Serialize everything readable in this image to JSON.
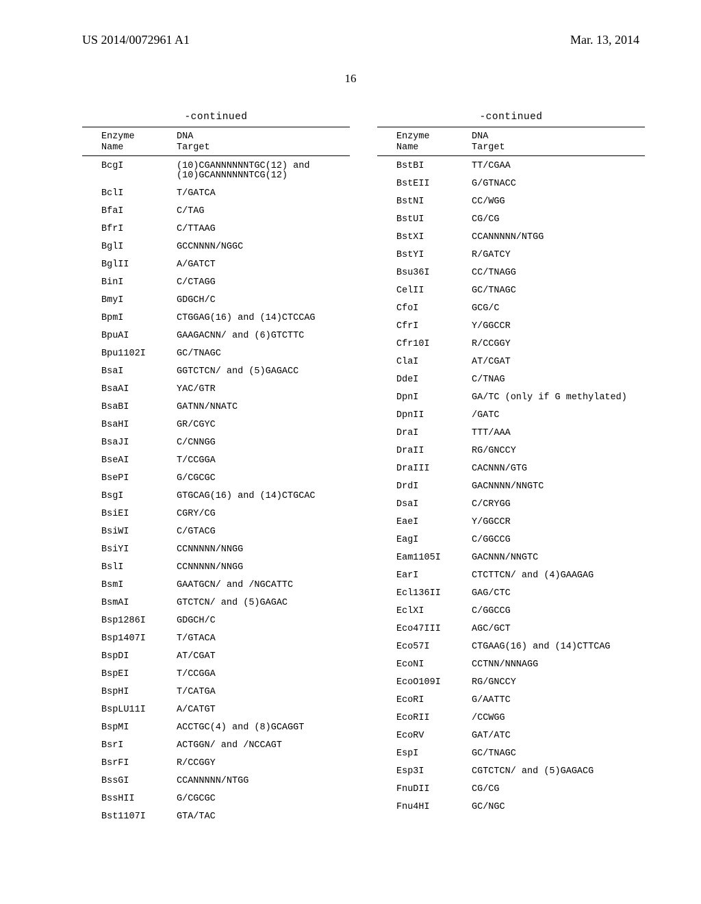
{
  "header": {
    "pub_number": "US 2014/0072961 A1",
    "pub_date": "Mar. 13, 2014"
  },
  "page_number": "16",
  "continued_label": "-continued",
  "column_headers": {
    "enzyme_line1": "Enzyme",
    "enzyme_line2": "Name",
    "dna_line1": "DNA",
    "dna_line2": "Target"
  },
  "left_rows": [
    {
      "name": "BcgI",
      "target": "(10)CGANNNNNNTGC(12) and\n(10)GCANNNNNNTCG(12)"
    },
    {
      "name": "BclI",
      "target": "T/GATCA"
    },
    {
      "name": "BfaI",
      "target": "C/TAG"
    },
    {
      "name": "BfrI",
      "target": "C/TTAAG"
    },
    {
      "name": "BglI",
      "target": "GCCNNNN/NGGC"
    },
    {
      "name": "BglII",
      "target": "A/GATCT"
    },
    {
      "name": "BinI",
      "target": "C/CTAGG"
    },
    {
      "name": "BmyI",
      "target": "GDGCH/C"
    },
    {
      "name": "BpmI",
      "target": "CTGGAG(16) and (14)CTCCAG"
    },
    {
      "name": "BpuAI",
      "target": "GAAGACNN/ and (6)GTCTTC"
    },
    {
      "name": "Bpu1102I",
      "target": "GC/TNAGC"
    },
    {
      "name": "BsaI",
      "target": "GGTCTCN/ and (5)GAGACC"
    },
    {
      "name": "BsaAI",
      "target": "YAC/GTR"
    },
    {
      "name": "BsaBI",
      "target": "GATNN/NNATC"
    },
    {
      "name": "BsaHI",
      "target": "GR/CGYC"
    },
    {
      "name": "BsaJI",
      "target": "C/CNNGG"
    },
    {
      "name": "BseAI",
      "target": "T/CCGGA"
    },
    {
      "name": "BsePI",
      "target": "G/CGCGC"
    },
    {
      "name": "BsgI",
      "target": "GTGCAG(16) and (14)CTGCAC"
    },
    {
      "name": "BsiEI",
      "target": "CGRY/CG"
    },
    {
      "name": "BsiWI",
      "target": "C/GTACG"
    },
    {
      "name": "BsiYI",
      "target": "CCNNNNN/NNGG"
    },
    {
      "name": "BslI",
      "target": "CCNNNNN/NNGG"
    },
    {
      "name": "BsmI",
      "target": "GAATGCN/ and /NGCATTC"
    },
    {
      "name": "BsmAI",
      "target": "GTCTCN/ and (5)GAGAC"
    },
    {
      "name": "Bsp1286I",
      "target": "GDGCH/C"
    },
    {
      "name": "Bsp1407I",
      "target": "T/GTACA"
    },
    {
      "name": "BspDI",
      "target": "AT/CGAT"
    },
    {
      "name": "BspEI",
      "target": "T/CCGGA"
    },
    {
      "name": "BspHI",
      "target": "T/CATGA"
    },
    {
      "name": "BspLU11I",
      "target": "A/CATGT"
    },
    {
      "name": "BspMI",
      "target": "ACCTGC(4) and (8)GCAGGT"
    },
    {
      "name": "BsrI",
      "target": "ACTGGN/ and /NCCAGT"
    },
    {
      "name": "BsrFI",
      "target": "R/CCGGY"
    },
    {
      "name": "BssGI",
      "target": "CCANNNNN/NTGG"
    },
    {
      "name": "BssHII",
      "target": "G/CGCGC"
    },
    {
      "name": "Bst1107I",
      "target": "GTA/TAC"
    }
  ],
  "right_rows": [
    {
      "name": "BstBI",
      "target": "TT/CGAA"
    },
    {
      "name": "BstEII",
      "target": "G/GTNACC"
    },
    {
      "name": "BstNI",
      "target": "CC/WGG"
    },
    {
      "name": "BstUI",
      "target": "CG/CG"
    },
    {
      "name": "BstXI",
      "target": "CCANNNNN/NTGG"
    },
    {
      "name": "BstYI",
      "target": "R/GATCY"
    },
    {
      "name": "Bsu36I",
      "target": "CC/TNAGG"
    },
    {
      "name": "CelII",
      "target": "GC/TNAGC"
    },
    {
      "name": "CfoI",
      "target": "GCG/C"
    },
    {
      "name": "CfrI",
      "target": "Y/GGCCR"
    },
    {
      "name": "Cfr10I",
      "target": "R/CCGGY"
    },
    {
      "name": "ClaI",
      "target": "AT/CGAT"
    },
    {
      "name": "DdeI",
      "target": "C/TNAG"
    },
    {
      "name": "DpnI",
      "target": "GA/TC (only if G methylated)"
    },
    {
      "name": "DpnII",
      "target": "/GATC"
    },
    {
      "name": "DraI",
      "target": "TTT/AAA"
    },
    {
      "name": "DraII",
      "target": "RG/GNCCY"
    },
    {
      "name": "DraIII",
      "target": "CACNNN/GTG"
    },
    {
      "name": "DrdI",
      "target": "GACNNNN/NNGTC"
    },
    {
      "name": "DsaI",
      "target": "C/CRYGG"
    },
    {
      "name": "EaeI",
      "target": "Y/GGCCR"
    },
    {
      "name": "EagI",
      "target": "C/GGCCG"
    },
    {
      "name": "Eam1105I",
      "target": "GACNNN/NNGTC"
    },
    {
      "name": "EarI",
      "target": "CTCTTCN/ and (4)GAAGAG"
    },
    {
      "name": "Ecl136II",
      "target": "GAG/CTC"
    },
    {
      "name": "EclXI",
      "target": "C/GGCCG"
    },
    {
      "name": "Eco47III",
      "target": "AGC/GCT"
    },
    {
      "name": "Eco57I",
      "target": "CTGAAG(16) and (14)CTTCAG"
    },
    {
      "name": "EcoNI",
      "target": "CCTNN/NNNAGG"
    },
    {
      "name": "EcoO109I",
      "target": "RG/GNCCY"
    },
    {
      "name": "EcoRI",
      "target": "G/AATTC"
    },
    {
      "name": "EcoRII",
      "target": "/CCWGG"
    },
    {
      "name": "EcoRV",
      "target": "GAT/ATC"
    },
    {
      "name": "EspI",
      "target": "GC/TNAGC"
    },
    {
      "name": "Esp3I",
      "target": "CGTCTCN/ and (5)GAGACG"
    },
    {
      "name": "FnuDII",
      "target": "CG/CG"
    },
    {
      "name": "Fnu4HI",
      "target": "GC/NGC"
    }
  ]
}
